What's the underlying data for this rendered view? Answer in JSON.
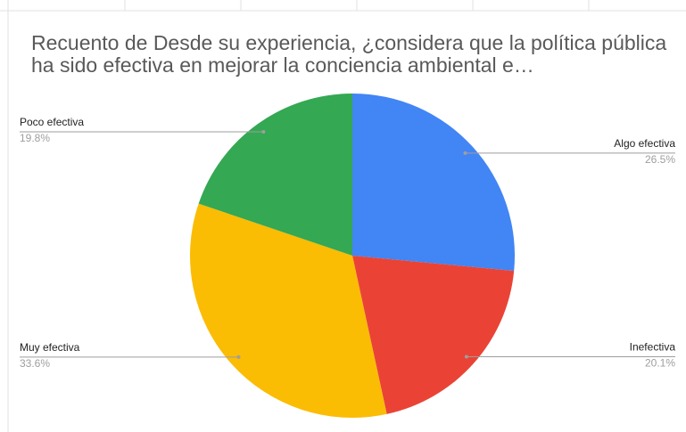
{
  "chart_data": {
    "type": "pie",
    "title": "Recuento de Desde su experiencia, ¿considera que la política pública ha sido efectiva en mejorar la conciencia ambiental e…",
    "categories": [
      "Algo efectiva",
      "Inefectiva",
      "Muy efectiva",
      "Poco efectiva"
    ],
    "values": [
      26.5,
      20.1,
      33.6,
      19.8
    ],
    "value_labels": [
      "26.5%",
      "20.1%",
      "33.6%",
      "19.8%"
    ],
    "colors": [
      "#4285f4",
      "#ea4335",
      "#fbbc04",
      "#34a853"
    ]
  }
}
